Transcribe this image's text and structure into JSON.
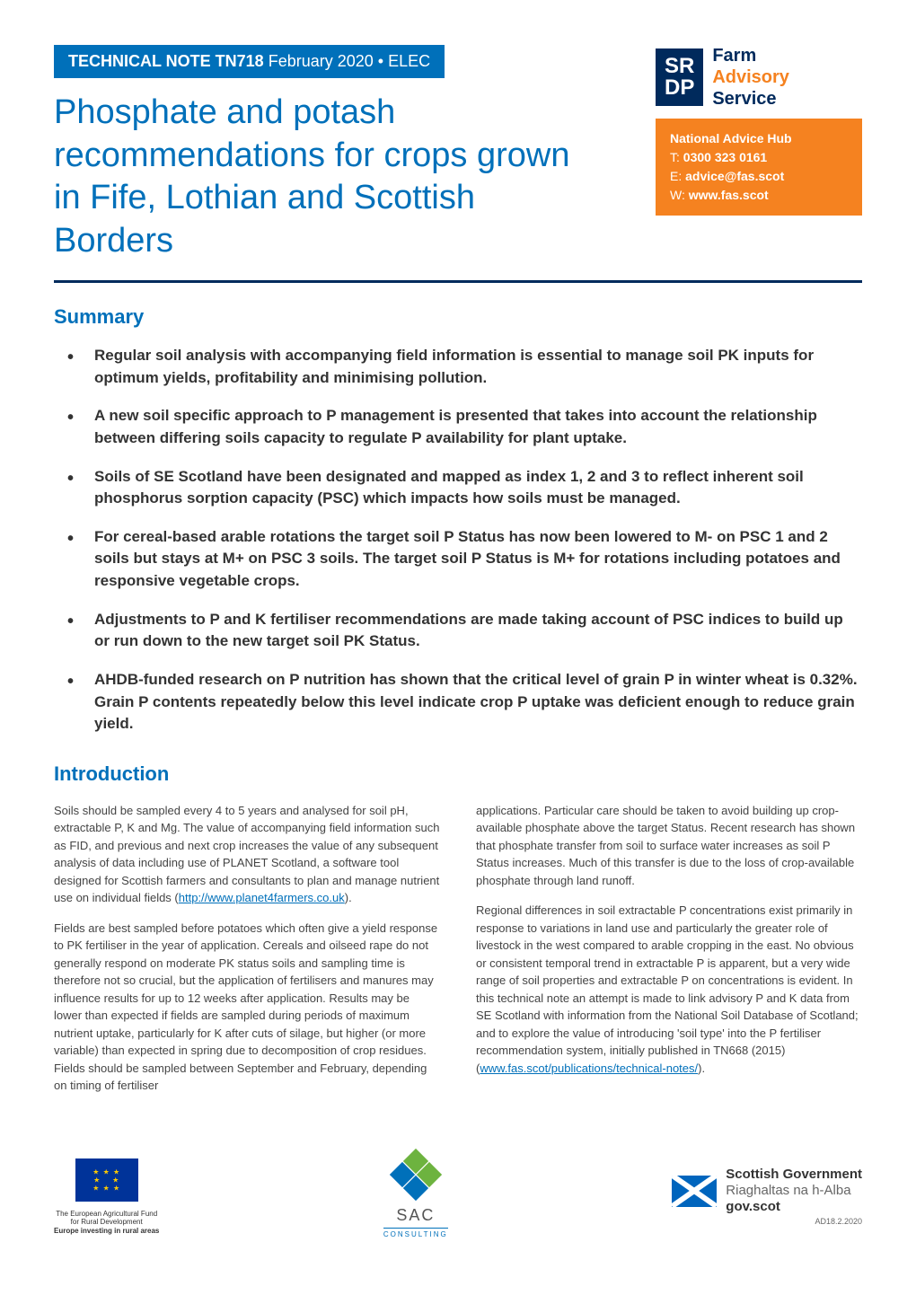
{
  "header": {
    "tech_note_bold": "TECHNICAL NOTE TN718",
    "tech_note_regular": " February 2020 • ELEC",
    "main_title": "Phosphate and potash recommendations for crops grown in Fife, Lothian and Scottish Borders",
    "srdp_text": "SR\nDP",
    "fas_farm": "Farm",
    "fas_advisory": "Advisory",
    "fas_service": "Service",
    "hub_title": "National Advice Hub",
    "hub_tel_label": "T: ",
    "hub_tel": "0300 323 0161",
    "hub_email_label": "E: ",
    "hub_email": "advice@fas.scot",
    "hub_web_label": "W: ",
    "hub_web": "www.fas.scot"
  },
  "summary": {
    "heading": "Summary",
    "items": [
      "Regular soil analysis with accompanying field information is essential to manage soil PK inputs for optimum yields, profitability and minimising pollution.",
      "A new soil specific approach to P management is presented that takes into account the relationship between differing soils capacity to regulate P availability for plant uptake.",
      "Soils of SE Scotland have been designated and mapped as index 1, 2 and 3 to reflect inherent soil phosphorus sorption capacity (PSC) which impacts how soils must be managed.",
      "For cereal-based arable rotations the target soil P Status has now been lowered to M- on PSC 1 and 2 soils but stays at M+ on PSC 3 soils. The target soil P Status is M+ for rotations including potatoes and responsive vegetable crops.",
      "Adjustments to P and K fertiliser recommendations are made taking account of PSC indices to build up or run down to the new target soil PK Status.",
      "AHDB-funded research on P nutrition has shown that the critical level of grain P in winter wheat is 0.32%. Grain P contents repeatedly below this level indicate crop P uptake was deficient enough to reduce grain yield."
    ]
  },
  "introduction": {
    "heading": "Introduction",
    "col1_p1": "Soils should be sampled every 4 to 5 years and analysed for soil pH, extractable P, K and Mg. The value of accompanying field information such as FID, and previous and next crop increases the value of any subsequent analysis of data including use of PLANET Scotland, a software tool designed for Scottish farmers and consultants to plan and manage nutrient use on individual fields",
    "col1_link1": "http://www.planet4farmers.co.uk",
    "col1_p2": "Fields are best sampled before potatoes which often give a yield response to PK fertiliser in the year of application. Cereals and oilseed rape do not generally respond on moderate PK status soils and sampling time is therefore not so crucial, but the application of fertilisers and manures may influence results for up to 12 weeks after application. Results may be lower than expected if fields are sampled during periods of maximum nutrient uptake, particularly for K after cuts of silage, but higher (or more variable) than expected in spring due to decomposition of crop residues. Fields should be sampled between September and February, depending on timing of fertiliser",
    "col2_p1": "applications. Particular care should be taken to avoid building up crop-available phosphate above the target Status. Recent research has shown that phosphate transfer from soil to surface water increases as soil P Status increases. Much of this transfer is due to the loss of crop-available phosphate through land runoff.",
    "col2_p2a": "Regional differences in soil extractable P concentrations exist primarily in response to variations in land use and particularly the greater role of livestock in the west compared to arable cropping in the east. No obvious or consistent temporal trend in extractable P is apparent, but a very wide range of soil properties and extractable P on concentrations is evident. In this technical note an attempt is made to link advisory P and K data from SE Scotland with information from the National Soil Database of Scotland; and to explore the value of introducing 'soil type' into the P fertiliser recommendation system, initially published in TN668 (2015)",
    "col2_link": "www.fas.scot/publications/technical-notes/"
  },
  "footer": {
    "eu_line1": "The European Agricultural Fund",
    "eu_line2": "for Rural Development",
    "eu_line3": "Europe investing in rural areas",
    "sac_name": "SAC",
    "sac_sub": "CONSULTING",
    "scot_line1": "Scottish Government",
    "scot_line2": "Riaghaltas na h-Alba",
    "scot_line3": "gov.scot",
    "doc_ref": "AD18.2.2020"
  },
  "colors": {
    "primary_blue": "#0070ba",
    "dark_navy": "#002a5c",
    "orange": "#f58220",
    "eu_blue": "#003399",
    "eu_gold": "#ffcc00",
    "sac_green": "#6db33f",
    "scot_blue": "#0065bd",
    "text_dark": "#333333",
    "text_body": "#444444"
  }
}
